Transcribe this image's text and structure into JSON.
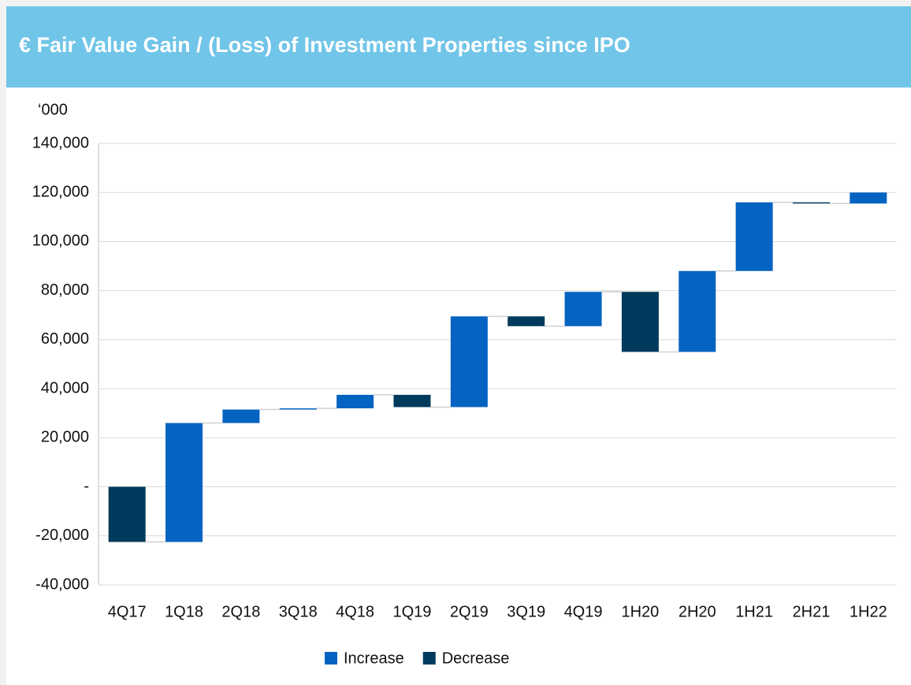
{
  "chart_data": {
    "type": "waterfall",
    "title": "€ Fair Value Gain / (Loss) of Investment Properties since IPO",
    "y_unit_label": "‘000",
    "categories": [
      "4Q17",
      "1Q18",
      "2Q18",
      "3Q18",
      "4Q18",
      "1Q19",
      "2Q19",
      "3Q19",
      "4Q19",
      "1H20",
      "2H20",
      "1H21",
      "2H21",
      "1H22"
    ],
    "values": [
      -22500,
      48500,
      5500,
      500,
      5500,
      -5000,
      37000,
      -4000,
      14000,
      -24500,
      33000,
      28000,
      -500,
      4500
    ],
    "series": [
      {
        "name": "Increase",
        "color": "#0563c1"
      },
      {
        "name": "Decrease",
        "color": "#003a5c"
      }
    ],
    "ylim": [
      -40000,
      140000
    ],
    "yticks": [
      {
        "value": -40000,
        "label": "-40,000"
      },
      {
        "value": -20000,
        "label": "-20,000"
      },
      {
        "value": 0,
        "label": "-"
      },
      {
        "value": 20000,
        "label": "20,000"
      },
      {
        "value": 40000,
        "label": "40,000"
      },
      {
        "value": 60000,
        "label": "60,000"
      },
      {
        "value": 80000,
        "label": "80,000"
      },
      {
        "value": 100000,
        "label": "100,000"
      },
      {
        "value": 120000,
        "label": "120,000"
      },
      {
        "value": 140000,
        "label": "140,000"
      }
    ],
    "grid": true,
    "legend": "bottom"
  }
}
